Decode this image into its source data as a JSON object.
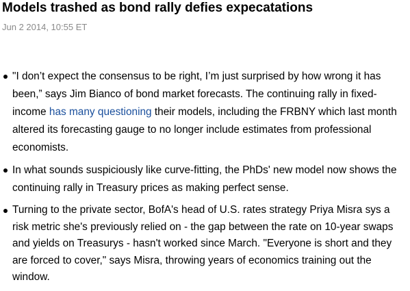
{
  "header": {
    "title": "Models trashed as bond rally defies expecatations",
    "date": "Jun 2 2014, 10:55 ET"
  },
  "bullets": [
    {
      "before": "\"I don’t expect the consensus to be right, I’m just surprised by how wrong it has been,” says Jim Bianco of bond market forecasts. The continuing rally in fixed-income ",
      "link": "has many questioning",
      "after": " their models, including the FRBNY which last month altered its forecasting gauge to no longer include estimates from professional economists."
    },
    {
      "text": "In what sounds suspiciously like curve-fitting, the PhDs' new model now shows the continuing rally in Treasury prices as making perfect sense."
    },
    {
      "text": "Turning to the private sector, BofA's head of U.S. rates strategy Priya Misra sys a risk metric she's previously relied on - the gap between the rate on 10-year swaps and yields on Treasurys - hasn't worked since March. \"Everyone is short and they are forced to cover,\" says Misra, throwing years of economics training out the window."
    }
  ]
}
